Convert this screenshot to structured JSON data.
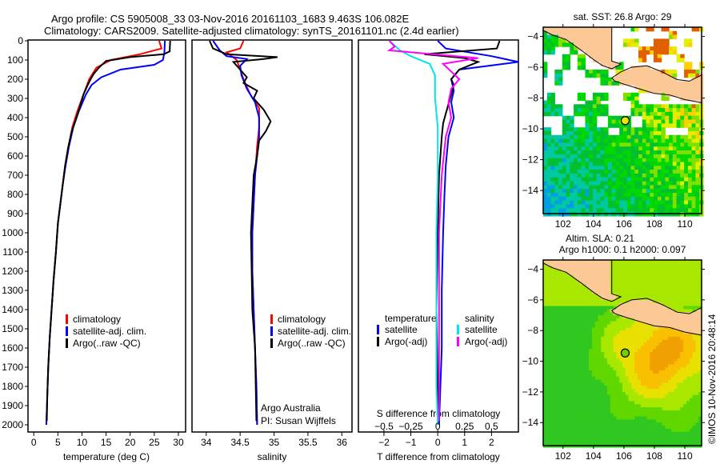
{
  "header": {
    "line1": "Argo profile: CS 5905008_33 03-Nov-2016 20161103_1683 9.463S 106.082E",
    "line2": "Climatology: CARS2009. Satellite-adjusted climatology: synTS_20161101.nc (2.4d earlier)"
  },
  "colors": {
    "climatology": "#ff0000",
    "satellite": "#0000ff",
    "argo": "#000000",
    "s_satellite": "#00e5ee",
    "s_argo": "#ff00ff",
    "land": "#fcc896"
  },
  "chart_data": [
    {
      "type": "line",
      "name": "temperature-profile",
      "xlabel": "temperature (deg C)",
      "ylabel": "depth",
      "xlim": [
        -1.2,
        31.5
      ],
      "ylim": [
        2040,
        0
      ],
      "xticks": [
        0,
        5,
        10,
        15,
        20,
        25,
        30
      ],
      "yticks": [
        0,
        100,
        200,
        300,
        400,
        500,
        600,
        700,
        800,
        900,
        1000,
        1100,
        1200,
        1300,
        1400,
        1500,
        1600,
        1700,
        1800,
        1900,
        2000
      ],
      "legend": [
        "climatology",
        "satellite-adj. clim.",
        "Argo(..raw -QC)"
      ],
      "series": [
        {
          "name": "climatology",
          "color": "#ff0000",
          "points": [
            [
              26,
              0
            ],
            [
              26.5,
              40
            ],
            [
              22,
              70
            ],
            [
              16,
              100
            ],
            [
              13,
              140
            ],
            [
              11.5,
              200
            ],
            [
              10.3,
              280
            ],
            [
              9,
              370
            ],
            [
              8,
              450
            ],
            [
              7.2,
              550
            ],
            [
              6.5,
              650
            ],
            [
              6,
              750
            ],
            [
              5.5,
              850
            ],
            [
              5,
              950
            ],
            [
              4.6,
              1100
            ],
            [
              4.1,
              1250
            ],
            [
              3.7,
              1400
            ],
            [
              3.3,
              1550
            ],
            [
              3,
              1700
            ],
            [
              2.8,
              1850
            ],
            [
              2.6,
              2000
            ]
          ]
        },
        {
          "name": "satellite-adj. clim.",
          "color": "#0000ff",
          "points": [
            [
              27.2,
              0
            ],
            [
              27.1,
              60
            ],
            [
              26.8,
              100
            ],
            [
              25,
              125
            ],
            [
              18,
              150
            ],
            [
              14,
              190
            ],
            [
              12,
              230
            ],
            [
              10.8,
              280
            ],
            [
              9.3,
              370
            ],
            [
              8.2,
              450
            ],
            [
              7.3,
              550
            ],
            [
              6.6,
              650
            ],
            [
              6,
              750
            ],
            [
              5.5,
              850
            ],
            [
              5,
              950
            ],
            [
              4.6,
              1100
            ],
            [
              4.1,
              1250
            ],
            [
              3.7,
              1400
            ],
            [
              3.3,
              1550
            ],
            [
              3,
              1700
            ],
            [
              2.8,
              1850
            ],
            [
              2.6,
              2000
            ]
          ]
        },
        {
          "name": "Argo(..raw -QC)",
          "color": "#000000",
          "points": [
            [
              28.3,
              0
            ],
            [
              28.2,
              55
            ],
            [
              27,
              70
            ],
            [
              20,
              85
            ],
            [
              15,
              105
            ],
            [
              13.5,
              140
            ],
            [
              12.5,
              170
            ],
            [
              11.8,
              200
            ],
            [
              11.2,
              230
            ],
            [
              10.3,
              280
            ],
            [
              9.5,
              350
            ],
            [
              8.6,
              420
            ],
            [
              7.8,
              480
            ],
            [
              7.1,
              560
            ],
            [
              6.5,
              650
            ],
            [
              6,
              750
            ],
            [
              5.5,
              850
            ],
            [
              5,
              950
            ],
            [
              4.6,
              1100
            ],
            [
              4.1,
              1250
            ],
            [
              3.7,
              1400
            ],
            [
              3.3,
              1550
            ],
            [
              3,
              1700
            ],
            [
              2.8,
              1850
            ],
            [
              2.7,
              1980
            ]
          ]
        }
      ]
    },
    {
      "type": "line",
      "name": "salinity-profile",
      "xlabel": "salinity",
      "xlim": [
        33.79,
        36.15
      ],
      "ylim": [
        2040,
        0
      ],
      "xticks": [
        34,
        34.5,
        35,
        35.5,
        36
      ],
      "legend": [
        "climatology",
        "satellite-adj. clim.",
        "Argo(..raw -QC)"
      ],
      "annotations": [
        "Argo Australia",
        "PI: Susan Wijffels"
      ],
      "series": [
        {
          "name": "climatology",
          "color": "#ff0000",
          "points": [
            [
              34.55,
              0
            ],
            [
              34.5,
              40
            ],
            [
              34.3,
              60
            ],
            [
              34.45,
              100
            ],
            [
              34.5,
              150
            ],
            [
              34.55,
              200
            ],
            [
              34.65,
              280
            ],
            [
              34.78,
              350
            ],
            [
              34.78,
              450
            ],
            [
              34.75,
              550
            ],
            [
              34.72,
              700
            ],
            [
              34.7,
              850
            ],
            [
              34.68,
              1000
            ],
            [
              34.68,
              1200
            ],
            [
              34.7,
              1400
            ],
            [
              34.72,
              1600
            ],
            [
              34.74,
              1800
            ],
            [
              34.75,
              2000
            ]
          ]
        },
        {
          "name": "satellite-adj. clim.",
          "color": "#0000ff",
          "points": [
            [
              34.1,
              0
            ],
            [
              34.2,
              50
            ],
            [
              34.3,
              80
            ],
            [
              34.6,
              95
            ],
            [
              34.5,
              130
            ],
            [
              34.52,
              180
            ],
            [
              34.6,
              250
            ],
            [
              34.72,
              320
            ],
            [
              34.78,
              400
            ],
            [
              34.78,
              500
            ],
            [
              34.75,
              600
            ],
            [
              34.72,
              700
            ],
            [
              34.7,
              850
            ],
            [
              34.68,
              1000
            ],
            [
              34.68,
              1200
            ],
            [
              34.7,
              1400
            ],
            [
              34.72,
              1600
            ],
            [
              34.74,
              1800
            ],
            [
              34.75,
              2000
            ]
          ]
        },
        {
          "name": "Argo(..raw -QC)",
          "color": "#000000",
          "points": [
            [
              34.05,
              0
            ],
            [
              34.1,
              40
            ],
            [
              34.3,
              70
            ],
            [
              35.05,
              85
            ],
            [
              34.85,
              95
            ],
            [
              34.4,
              110
            ],
            [
              34.5,
              150
            ],
            [
              34.6,
              190
            ],
            [
              34.55,
              220
            ],
            [
              34.75,
              260
            ],
            [
              34.7,
              300
            ],
            [
              34.85,
              360
            ],
            [
              34.95,
              420
            ],
            [
              34.88,
              470
            ],
            [
              34.78,
              520
            ],
            [
              34.75,
              600
            ],
            [
              34.7,
              700
            ],
            [
              34.68,
              850
            ],
            [
              34.66,
              1000
            ],
            [
              34.67,
              1200
            ],
            [
              34.68,
              1400
            ],
            [
              34.72,
              1600
            ],
            [
              34.73,
              1800
            ],
            [
              34.74,
              1980
            ]
          ]
        }
      ]
    },
    {
      "type": "line",
      "name": "difference-profile",
      "xlabel": "T difference from climatology",
      "x2label": "S difference from climatology",
      "xlim": [
        -2.95,
        3.0
      ],
      "ylim": [
        2040,
        0
      ],
      "xticks": [
        -2,
        -1,
        0,
        1,
        2
      ],
      "x2ticks": [
        -0.5,
        -0.25,
        0,
        0.25,
        0.5
      ],
      "legend_titles": [
        "temperature",
        "salinity"
      ],
      "legend": [
        "satellite",
        "Argo(-adj)",
        "satellite",
        "Argo(-adj)"
      ],
      "series": [
        {
          "name": "T satellite",
          "color": "#0000ff",
          "points": [
            [
              0,
              0
            ],
            [
              0.3,
              40
            ],
            [
              2,
              80
            ],
            [
              3,
              110
            ],
            [
              0.8,
              150
            ],
            [
              0.5,
              200
            ],
            [
              0.6,
              260
            ],
            [
              0.5,
              320
            ],
            [
              0.6,
              400
            ],
            [
              0.4,
              500
            ],
            [
              0.3,
              650
            ],
            [
              0.25,
              800
            ],
            [
              0.2,
              1000
            ],
            [
              0.15,
              1300
            ],
            [
              0.15,
              1600
            ],
            [
              0.1,
              1800
            ],
            [
              0.05,
              2000
            ]
          ]
        },
        {
          "name": "T Argo(-adj)",
          "color": "#000000",
          "points": [
            [
              2.3,
              0
            ],
            [
              2.2,
              40
            ],
            [
              -0.5,
              70
            ],
            [
              1,
              90
            ],
            [
              1.5,
              110
            ],
            [
              0.8,
              150
            ],
            [
              0.5,
              200
            ],
            [
              0.6,
              230
            ],
            [
              0.5,
              280
            ],
            [
              0.4,
              330
            ],
            [
              0.3,
              380
            ],
            [
              0.2,
              430
            ],
            [
              0.15,
              500
            ],
            [
              0.05,
              700
            ],
            [
              0,
              1000
            ],
            [
              -0.05,
              1400
            ],
            [
              0,
              1800
            ],
            [
              0.05,
              1980
            ]
          ]
        },
        {
          "name": "S satellite",
          "color": "#00e5ee",
          "points": [
            [
              -1.8,
              0
            ],
            [
              -1.4,
              50
            ],
            [
              -1,
              80
            ],
            [
              -0.3,
              120
            ],
            [
              -0.1,
              180
            ],
            [
              -0.1,
              300
            ],
            [
              0,
              450
            ],
            [
              0,
              700
            ],
            [
              -0.05,
              1000
            ],
            [
              -0.05,
              1400
            ],
            [
              -0.05,
              1800
            ],
            [
              0,
              2000
            ]
          ]
        },
        {
          "name": "S Argo(-adj)",
          "color": "#ff00ff",
          "points": [
            [
              -1.8,
              0
            ],
            [
              -1.6,
              30
            ],
            [
              -1.8,
              50
            ],
            [
              1.5,
              90
            ],
            [
              0.2,
              120
            ],
            [
              0.8,
              200
            ],
            [
              0.5,
              250
            ],
            [
              0.4,
              320
            ],
            [
              0.5,
              400
            ],
            [
              0.3,
              500
            ],
            [
              0.15,
              700
            ],
            [
              0.05,
              1000
            ],
            [
              0.05,
              1400
            ],
            [
              0.05,
              1800
            ],
            [
              0.05,
              1980
            ]
          ]
        }
      ]
    },
    {
      "type": "heatmap",
      "name": "sst-map",
      "title": "sat. SST: 26.8 Argo: 29",
      "xlim": [
        100.7,
        111.1
      ],
      "ylim": [
        -15.5,
        -3.4
      ],
      "xticks": [
        102,
        104,
        106,
        108,
        110
      ],
      "yticks": [
        -4,
        -6,
        -8,
        -10,
        -12,
        -14
      ],
      "argo_position": [
        106.082,
        -9.463
      ]
    },
    {
      "type": "heatmap",
      "name": "sla-map",
      "title_line1": "Altim. SLA: 0.21",
      "title_line2": "Argo h1000: 0.1 h2000: 0.097",
      "xlim": [
        100.7,
        111.1
      ],
      "ylim": [
        -15.5,
        -3.4
      ],
      "xticks": [
        102,
        104,
        106,
        108,
        110
      ],
      "yticks": [
        -4,
        -6,
        -8,
        -10,
        -12,
        -14
      ],
      "argo_position": [
        106.082,
        -9.463
      ]
    }
  ],
  "footer": {
    "credit": "©IMOS 10-Nov-2016 20:48:14"
  }
}
